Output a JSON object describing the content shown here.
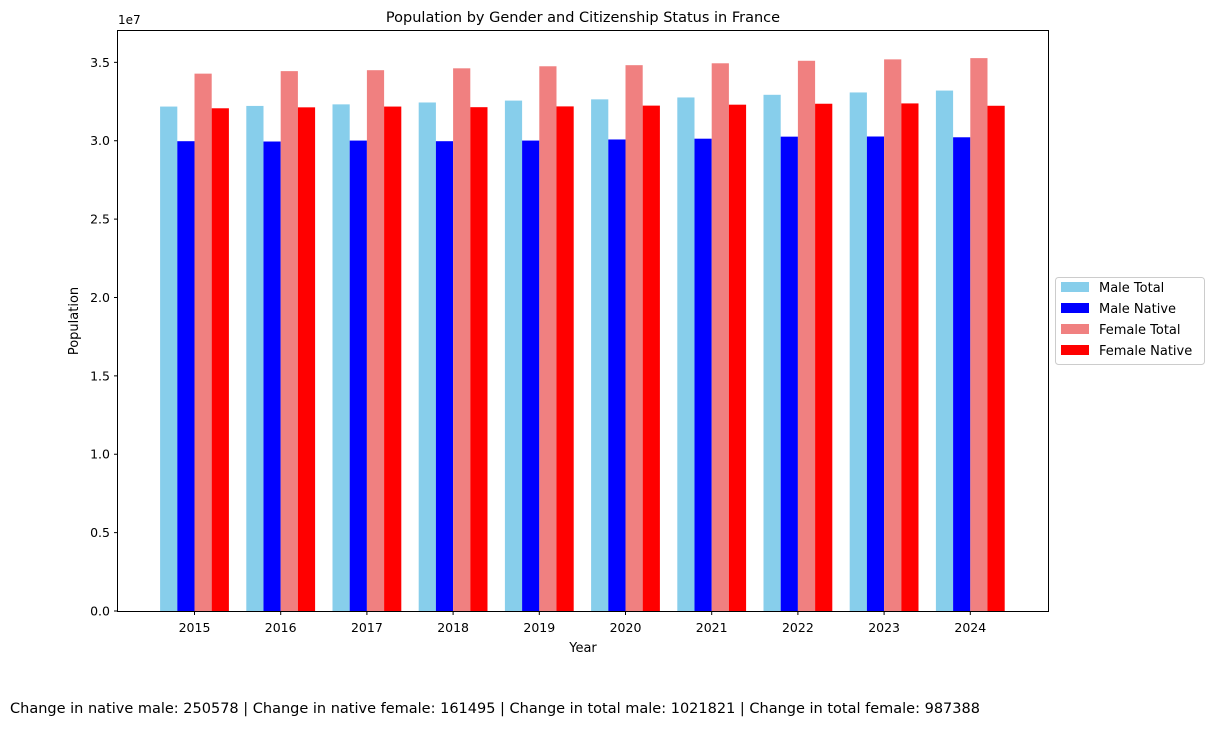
{
  "chart_data": {
    "type": "bar",
    "title": "Population by Gender and Citizenship Status in France",
    "xlabel": "Year",
    "ylabel": "Population",
    "y_offset_label": "1e7",
    "ylim": [
      0,
      37000000
    ],
    "y_ticks": [
      0,
      5000000,
      10000000,
      15000000,
      20000000,
      25000000,
      30000000,
      35000000
    ],
    "y_tick_labels": [
      "0.0",
      "0.5",
      "1.0",
      "1.5",
      "2.0",
      "2.5",
      "3.0",
      "3.5"
    ],
    "categories": [
      "2015",
      "2016",
      "2017",
      "2018",
      "2019",
      "2020",
      "2021",
      "2022",
      "2023",
      "2024"
    ],
    "grid": false,
    "legend_position": "right, outside plot, vertically centered",
    "series": [
      {
        "name": "Male Total",
        "color": "#87ceeb",
        "values": [
          32180000,
          32220000,
          32320000,
          32440000,
          32560000,
          32640000,
          32760000,
          32930000,
          33080000,
          33200000
        ]
      },
      {
        "name": "Male Native",
        "color": "#0000ff",
        "values": [
          29970000,
          29950000,
          30010000,
          29970000,
          30010000,
          30080000,
          30130000,
          30260000,
          30270000,
          30220000
        ]
      },
      {
        "name": "Female Total",
        "color": "#f08080",
        "values": [
          34280000,
          34440000,
          34500000,
          34620000,
          34750000,
          34820000,
          34940000,
          35100000,
          35190000,
          35270000
        ]
      },
      {
        "name": "Female Native",
        "color": "#ff0000",
        "values": [
          32070000,
          32130000,
          32180000,
          32140000,
          32190000,
          32240000,
          32300000,
          32360000,
          32380000,
          32230000
        ]
      }
    ]
  },
  "footnote": "Change in native male: 250578 | Change in native female: 161495 | Change in total male: 1021821 | Change in total female: 987388"
}
